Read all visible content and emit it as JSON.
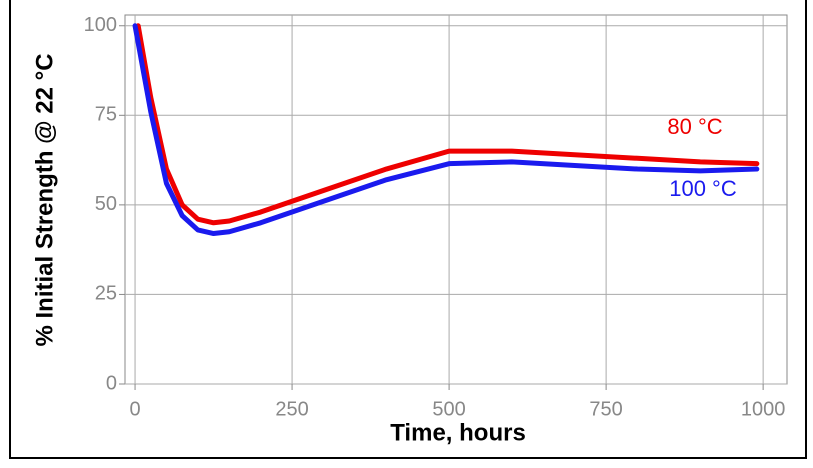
{
  "chart_data": {
    "type": "line",
    "x_label": "Time, hours",
    "y_label": "% Initial Strength @ 22 °C",
    "series": [
      {
        "name": "80 °C",
        "color": "#ee0000",
        "x": [
          5,
          25,
          50,
          75,
          100,
          125,
          150,
          200,
          250,
          300,
          400,
          500,
          600,
          700,
          800,
          900,
          990
        ],
        "values": [
          100,
          80,
          60,
          50,
          46,
          45,
          45.5,
          48,
          51,
          54,
          60,
          65,
          65,
          64,
          63,
          62,
          61.5
        ]
      },
      {
        "name": "100 °C",
        "color": "#1a1aee",
        "x": [
          0,
          25,
          50,
          75,
          100,
          125,
          150,
          200,
          250,
          300,
          400,
          500,
          600,
          700,
          800,
          900,
          990
        ],
        "values": [
          100,
          76,
          56,
          47,
          43,
          42,
          42.5,
          45,
          48,
          51,
          57,
          61.5,
          62,
          61,
          60,
          59.5,
          60
        ]
      }
    ],
    "xlim": [
      -16,
      1038
    ],
    "ylim": [
      0,
      103
    ],
    "xticks": [
      0,
      250,
      500,
      750,
      1000
    ],
    "yticks": [
      0,
      25,
      50,
      75,
      100
    ],
    "grid": true
  }
}
